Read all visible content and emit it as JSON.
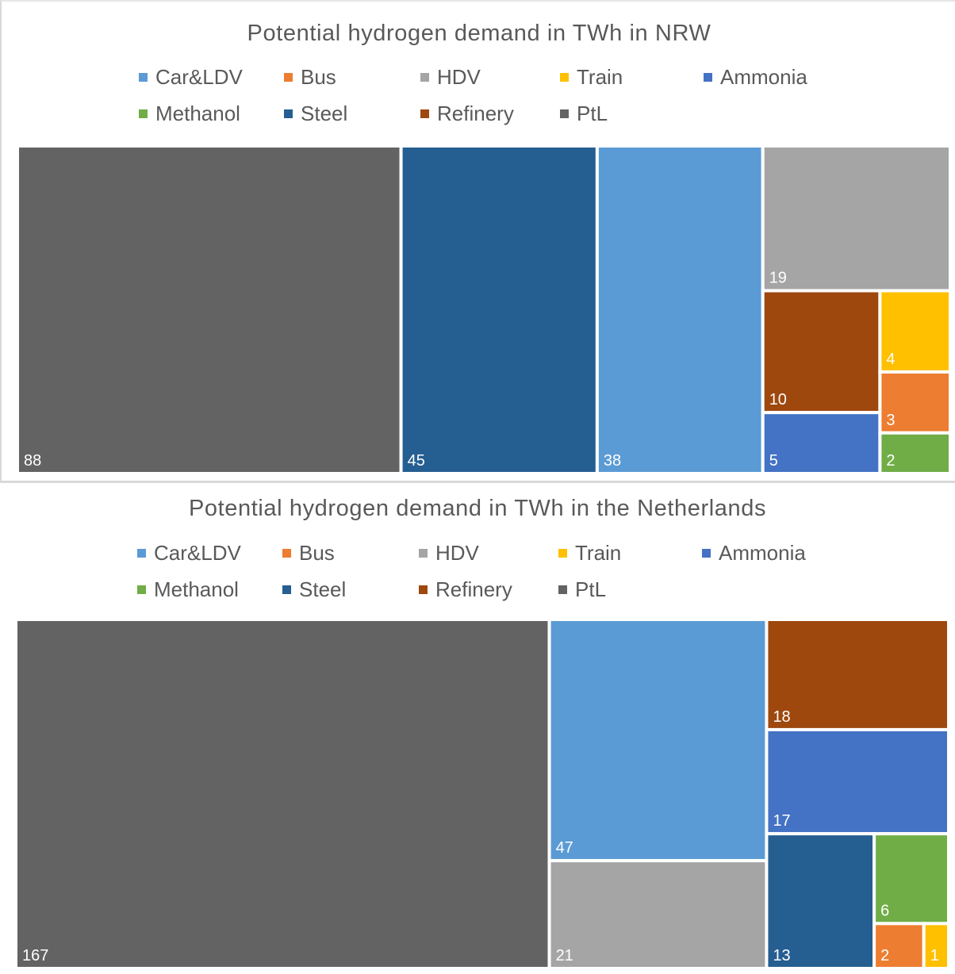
{
  "colors": {
    "Car&LDV": "#5b9bd5",
    "Bus": "#ed7d31",
    "HDV": "#a5a5a5",
    "Train": "#ffc000",
    "Ammonia": "#4472c4",
    "Methanol": "#70ad47",
    "Steel": "#255e91",
    "Refinery": "#9e480e",
    "PtL": "#636363"
  },
  "chart_data": [
    {
      "type": "treemap",
      "title": "Potential hydrogen demand in TWh in NRW",
      "legend": [
        "Car&LDV",
        "Bus",
        "HDV",
        "Train",
        "Ammonia",
        "Methanol",
        "Steel",
        "Refinery",
        "PtL"
      ],
      "legend_position": "top",
      "items": [
        {
          "name": "PtL",
          "value": 88,
          "label": "88"
        },
        {
          "name": "Steel",
          "value": 45,
          "label": "45"
        },
        {
          "name": "Car&LDV",
          "value": 38,
          "label": "38"
        },
        {
          "name": "HDV",
          "value": 19,
          "label": "19"
        },
        {
          "name": "Refinery",
          "value": 10,
          "label": "10"
        },
        {
          "name": "Ammonia",
          "value": 5,
          "label": "5"
        },
        {
          "name": "Train",
          "value": 4,
          "label": "4"
        },
        {
          "name": "Bus",
          "value": 3,
          "label": "3"
        },
        {
          "name": "Methanol",
          "value": 2,
          "label": "2"
        }
      ]
    },
    {
      "type": "treemap",
      "title": "Potential hydrogen demand in TWh in the Netherlands",
      "legend": [
        "Car&LDV",
        "Bus",
        "HDV",
        "Train",
        "Ammonia",
        "Methanol",
        "Steel",
        "Refinery",
        "PtL"
      ],
      "legend_position": "top",
      "items": [
        {
          "name": "PtL",
          "value": 167,
          "label": "167"
        },
        {
          "name": "Car&LDV",
          "value": 47,
          "label": "47"
        },
        {
          "name": "HDV",
          "value": 21,
          "label": "21"
        },
        {
          "name": "Refinery",
          "value": 18,
          "label": "18"
        },
        {
          "name": "Ammonia",
          "value": 17,
          "label": "17"
        },
        {
          "name": "Steel",
          "value": 13,
          "label": "13"
        },
        {
          "name": "Methanol",
          "value": 6,
          "label": "6"
        },
        {
          "name": "Bus",
          "value": 2,
          "label": "2"
        },
        {
          "name": "Train",
          "value": 1,
          "label": "1"
        }
      ]
    }
  ]
}
